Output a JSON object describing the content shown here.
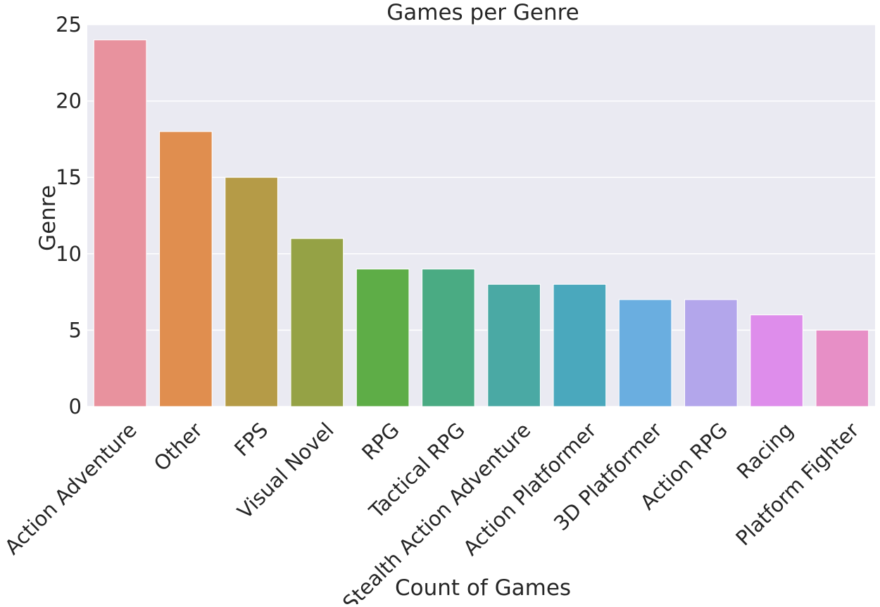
{
  "chart_data": {
    "type": "bar",
    "title": "Games per Genre",
    "xlabel": "Count of Games",
    "ylabel": "Genre",
    "categories": [
      "Action Adventure",
      "Other",
      "FPS",
      "Visual Novel",
      "RPG",
      "Tactical RPG",
      "Stealth Action Adventure",
      "Action Platformer",
      "3D Platformer",
      "Action RPG",
      "Racing",
      "Platform Fighter"
    ],
    "values": [
      24,
      18,
      15,
      11,
      9,
      9,
      8,
      8,
      7,
      7,
      6,
      5
    ],
    "colors": [
      "#e8929e",
      "#e08e4f",
      "#b59b47",
      "#95a245",
      "#5ead47",
      "#4aab83",
      "#4aa9a4",
      "#4aa8bd",
      "#6aaee0",
      "#b3a6eb",
      "#de8deb",
      "#e78fc6"
    ],
    "yticks": [
      "0",
      "5",
      "10",
      "15",
      "20",
      "25"
    ],
    "ylim": [
      0,
      25
    ],
    "grid": true,
    "background": "#eaeaf2"
  }
}
